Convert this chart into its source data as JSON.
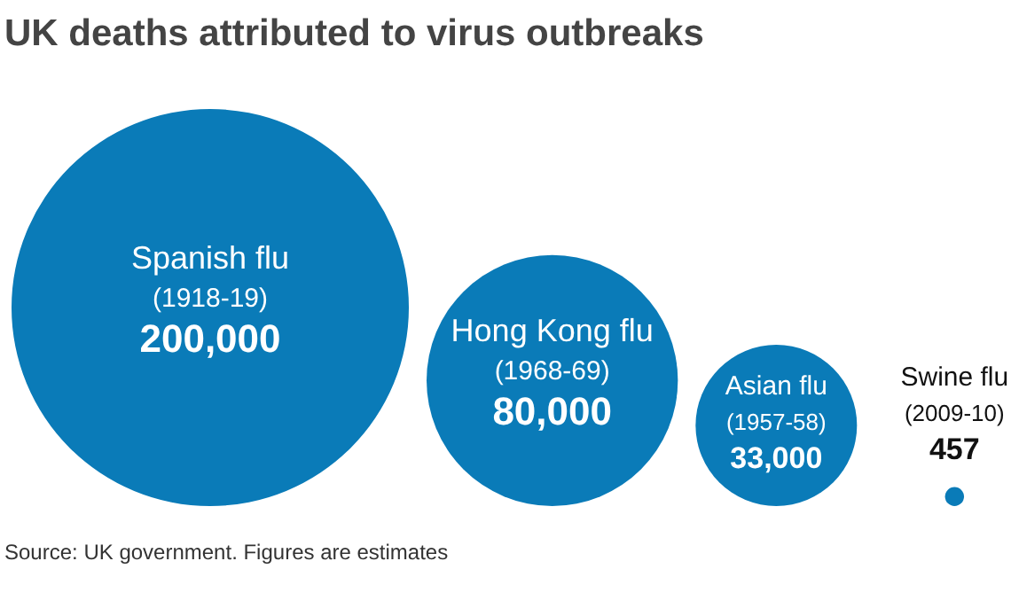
{
  "chart_data": {
    "type": "other",
    "title": "UK deaths attributed to virus outbreaks",
    "categories": [
      "Spanish flu\n(1918-19)",
      "Hong Kong flu\n(1968-69)",
      "Asian flu\n(1957-58)",
      "Swine flu\n(2009-10)"
    ],
    "values": [
      200000,
      80000,
      33000,
      457
    ],
    "color": "#0a7bb8",
    "value_labels": [
      "200,000",
      "80,000",
      "33,000",
      "457"
    ],
    "annotations": [
      "Source: UK government. Figures are estimates"
    ]
  }
}
